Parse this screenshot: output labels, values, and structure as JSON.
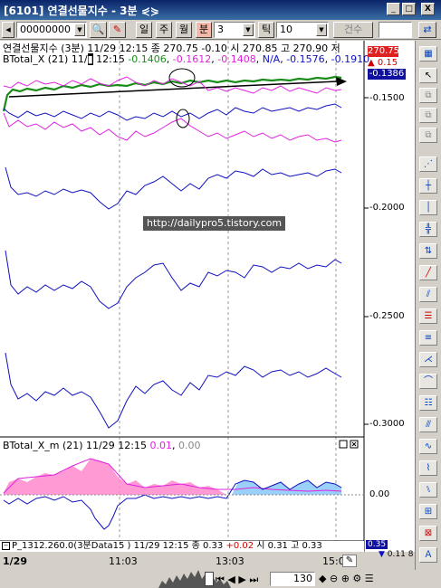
{
  "window": {
    "title": "[6101] 연결선물지수 - 3분 ⋞⋟",
    "minimize": "_",
    "restore": "□",
    "close": "X"
  },
  "toolbar": {
    "code": "00000000",
    "btn_day": "일",
    "btn_week": "주",
    "btn_month": "월",
    "btn_minute": "분",
    "minute_value": "3",
    "btn_tick": "틱",
    "tick_value": "10",
    "btn_count": "건수"
  },
  "price_header": "연결선물지수 (3분) 11/29 12:15  종 270.75 -0.10  시 270.85 고 270.90 저",
  "btotal_header": {
    "prefix": "BTotal_X  (21) 11/",
    "mid": " 12:15  ",
    "v1": "-0.1406",
    "v2": "-0.1612",
    "v3": "-0.1408",
    "v4": "N/A",
    "v5": "-0.1576",
    "v6": "-0.1910"
  },
  "right_labels": {
    "price": "270.75",
    "change": "0.15",
    "current": "-0.1386",
    "top_tick": "-0.1500",
    "ticks": [
      "-0.2000",
      "-0.2500",
      "-0.3000"
    ]
  },
  "watermark": "http://dailypro5.tistory.com",
  "sub_header": {
    "prefix": "BTotal_X_m  (21) 11/29 12:15  ",
    "v1": "0.01",
    "v2": "0.00"
  },
  "sub_axis": "0.00",
  "bottom_header": {
    "text": "P_1312.260.0(3분Data15 ) 11/29 12:15  종 0.33  ",
    "chg": "+0.02",
    "rest": "  시 0.31  고 0.33"
  },
  "bottom_right": {
    "up": "0.35",
    "down": "0.11",
    "extra": "8"
  },
  "time_axis": [
    "1/29",
    "11:03",
    "13:03",
    "15:0"
  ],
  "scroll": {
    "value": "130"
  },
  "colors": {
    "green": "#1a8c1a",
    "magenta": "#e020e0",
    "blue": "#1010c0",
    "pink": "#ff88cc",
    "light_blue": "#88c8f8"
  }
}
